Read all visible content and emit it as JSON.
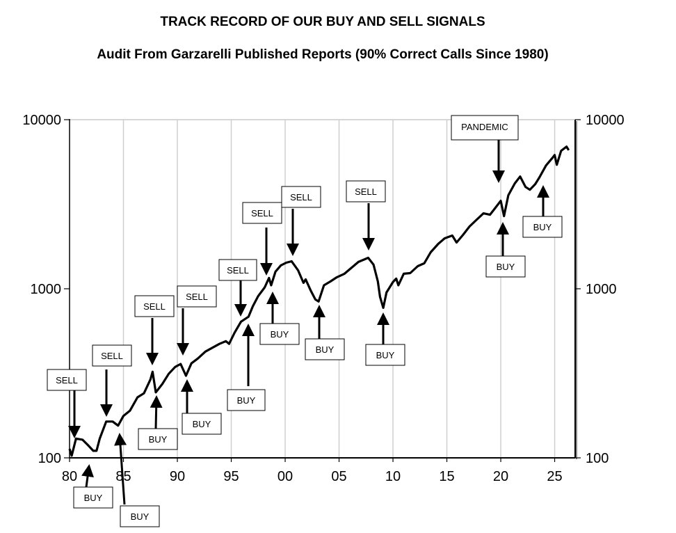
{
  "chart_data": {
    "type": "line",
    "title": "TRACK RECORD OF OUR BUY AND SELL SIGNALS",
    "subtitle": "Audit From Garzarelli Published Reports (90% Correct Calls Since 1980)",
    "xlabel": "",
    "ylabel": "",
    "y_scale": "log",
    "ylim": [
      100,
      10000
    ],
    "xlim": [
      1980,
      2026.9
    ],
    "grid": "vertical lines at x ticks",
    "x_ticks": [
      {
        "x": 1980,
        "label": "80"
      },
      {
        "x": 1985,
        "label": "85"
      },
      {
        "x": 1990,
        "label": "90"
      },
      {
        "x": 1995,
        "label": "95"
      },
      {
        "x": 2000,
        "label": "00"
      },
      {
        "x": 2005,
        "label": "05"
      },
      {
        "x": 2010,
        "label": "10"
      },
      {
        "x": 2015,
        "label": "15"
      },
      {
        "x": 2020,
        "label": "20"
      },
      {
        "x": 2025,
        "label": "25"
      }
    ],
    "y_ticks": [
      {
        "y": 10000,
        "label": "10000"
      },
      {
        "y": 1000,
        "label": "1000"
      },
      {
        "y": 100,
        "label": "100"
      }
    ],
    "line_color": "#000000",
    "series": [
      {
        "x": [
          1980.0,
          1980.2,
          1980.6,
          1981.2,
          1981.7,
          1982.2,
          1982.5,
          1982.8,
          1983.4,
          1984.0,
          1984.5,
          1985.0,
          1985.6,
          1986.3,
          1986.9,
          1987.5,
          1987.7,
          1988.0,
          1988.6,
          1989.2,
          1989.8,
          1990.3,
          1990.8,
          1991.3,
          1991.9,
          1992.6,
          1993.2,
          1993.9,
          1994.5,
          1994.8,
          1995.3,
          1995.9,
          1996.6,
          1997.0,
          1997.5,
          1998.1,
          1998.5,
          1998.7,
          1999.1,
          1999.6,
          2000.1,
          2000.6,
          2001.2,
          2001.7,
          2001.9,
          2002.4,
          2002.8,
          2003.1,
          2003.6,
          2004.2,
          2004.8,
          2005.5,
          2006.1,
          2006.8,
          2007.4,
          2007.7,
          2008.2,
          2008.6,
          2008.8,
          2009.1,
          2009.4,
          2010.0,
          2010.3,
          2010.5,
          2011.0,
          2011.6,
          2012.3,
          2012.9,
          2013.5,
          2014.2,
          2014.8,
          2015.5,
          2015.9,
          2016.5,
          2017.1,
          2017.7,
          2018.4,
          2019.0,
          2019.5,
          2020.0,
          2020.3,
          2020.7,
          2021.3,
          2021.8,
          2022.3,
          2022.7,
          2023.2,
          2023.6,
          2024.2,
          2024.8,
          2025.0,
          2025.2,
          2025.6,
          2026.1,
          2026.3
        ],
        "values": [
          113,
          103,
          130,
          128,
          119,
          110,
          110,
          130,
          164,
          164,
          155,
          177,
          190,
          228,
          241,
          291,
          323,
          244,
          273,
          314,
          345,
          359,
          306,
          362,
          387,
          425,
          446,
          472,
          490,
          472,
          549,
          639,
          683,
          787,
          906,
          1019,
          1159,
          1049,
          1262,
          1375,
          1427,
          1454,
          1286,
          1084,
          1137,
          968,
          865,
          841,
          1049,
          1105,
          1170,
          1227,
          1323,
          1441,
          1496,
          1525,
          1388,
          1105,
          898,
          771,
          950,
          1095,
          1148,
          1049,
          1227,
          1238,
          1361,
          1414,
          1644,
          1843,
          1987,
          2064,
          1878,
          2084,
          2335,
          2540,
          2793,
          2741,
          3012,
          3311,
          2690,
          3573,
          4197,
          4613,
          4001,
          3851,
          4157,
          4570,
          5360,
          5951,
          6179,
          5411,
          6542,
          6927,
          6606
        ]
      }
    ],
    "annotations": [
      {
        "label": "SELL",
        "x": 1980.5
      },
      {
        "label": "SELL",
        "x": 1983.5
      },
      {
        "label": "SELL",
        "x": 1987.7
      },
      {
        "label": "SELL",
        "x": 1990.5
      },
      {
        "label": "SELL",
        "x": 1995.9
      },
      {
        "label": "SELL",
        "x": 1998.3
      },
      {
        "label": "SELL",
        "x": 2000.7
      },
      {
        "label": "SELL",
        "x": 2007.7
      },
      {
        "label": "PANDEMIC",
        "x": 2019.8
      },
      {
        "label": "BUY",
        "x": 1981.8
      },
      {
        "label": "BUY",
        "x": 1984.6
      },
      {
        "label": "BUY",
        "x": 1988.0
      },
      {
        "label": "BUY",
        "x": 1990.9
      },
      {
        "label": "BUY",
        "x": 1996.6
      },
      {
        "label": "BUY",
        "x": 1998.8
      },
      {
        "label": "BUY",
        "x": 2003.2
      },
      {
        "label": "BUY",
        "x": 2009.1
      },
      {
        "label": "BUY",
        "x": 2020.2
      },
      {
        "label": "BUY",
        "x": 2023.9
      }
    ]
  }
}
